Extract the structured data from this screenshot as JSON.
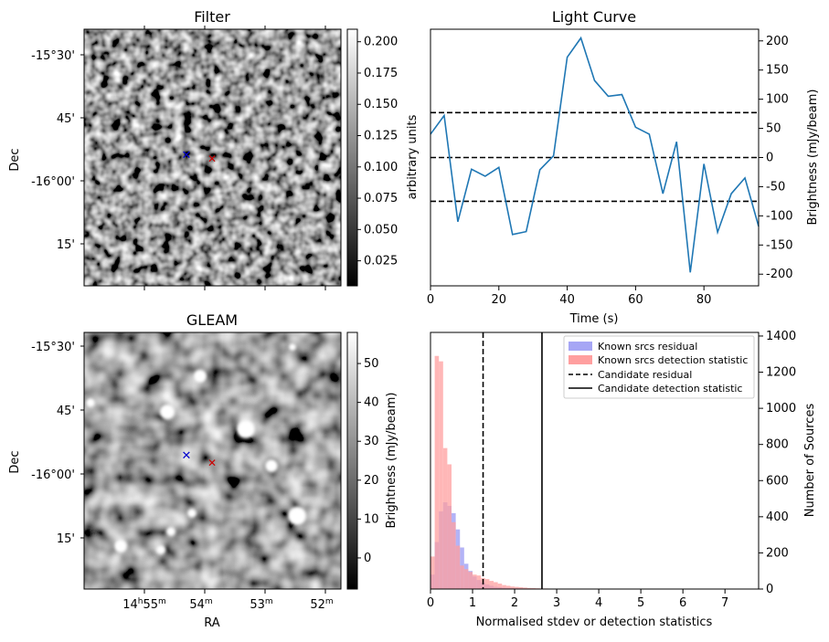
{
  "colors": {
    "line": "#1f77b4",
    "known_residual": "#a6a6f5",
    "known_detection": "#ff9f9f",
    "marker_blue": "#0000cc",
    "marker_red": "#cc0000"
  },
  "panels": {
    "filter": {
      "title": "Filter",
      "ylabel": "Dec",
      "dec_ticks": [
        "-15°30'",
        "45'",
        "-16°00'",
        "15'"
      ],
      "colorbar": {
        "label": "arbitrary units",
        "ticks": [
          "0.200",
          "0.175",
          "0.150",
          "0.125",
          "0.100",
          "0.075",
          "0.050",
          "0.025"
        ],
        "range": [
          0.005,
          0.21
        ]
      }
    },
    "gleam": {
      "title": "GLEAM",
      "ylabel": "Dec",
      "xlabel": "RA",
      "dec_ticks": [
        "-15°30'",
        "45'",
        "-16°00'",
        "15'"
      ],
      "ra_ticks": [
        {
          "main": "14",
          "sup1": "h",
          "mid": "55",
          "sup2": "m"
        },
        {
          "main": "54",
          "sup1": "",
          "mid": "",
          "sup2": "m"
        },
        {
          "main": "53",
          "sup1": "",
          "mid": "",
          "sup2": "m"
        },
        {
          "main": "52",
          "sup1": "",
          "mid": "",
          "sup2": "m"
        }
      ],
      "colorbar": {
        "label": "Brightness (mJy/beam)",
        "ticks": [
          "50",
          "40",
          "30",
          "20",
          "10",
          "0"
        ],
        "range": [
          -8,
          58
        ]
      }
    }
  },
  "chart_data": [
    {
      "type": "line",
      "title": "Light Curve",
      "xlabel": "Time (s)",
      "ylabel": "Brightness (mJy/beam)",
      "xlim": [
        0,
        96
      ],
      "ylim": [
        -220,
        220
      ],
      "xticks": [
        0,
        20,
        40,
        60,
        80
      ],
      "yticks": [
        -200,
        -150,
        -100,
        -50,
        0,
        50,
        100,
        150,
        200
      ],
      "x": [
        0,
        4,
        8,
        12,
        16,
        20,
        24,
        28,
        32,
        36,
        40,
        44,
        48,
        52,
        56,
        60,
        64,
        68,
        72,
        76,
        80,
        84,
        88,
        92,
        96
      ],
      "y": [
        40,
        72,
        -110,
        -20,
        -32,
        -17,
        -132,
        -127,
        -21,
        3,
        172,
        205,
        132,
        105,
        108,
        52,
        40,
        -62,
        27,
        -197,
        -11,
        -128,
        -62,
        -35,
        -118
      ],
      "hlines": [
        77,
        0,
        -75
      ]
    },
    {
      "type": "bar",
      "title": "",
      "xlabel": "Normalised stdev or detection statistics",
      "ylabel": "Number of Sources",
      "xlim": [
        0,
        7.8
      ],
      "ylim": [
        0,
        1420
      ],
      "xticks": [
        0,
        1,
        2,
        3,
        4,
        5,
        6,
        7
      ],
      "yticks": [
        0,
        200,
        400,
        600,
        800,
        1000,
        1200,
        1400
      ],
      "bin_width": 0.1,
      "series": [
        {
          "name": "Known srcs residual",
          "bin_start": 0,
          "values": [
            80,
            260,
            430,
            480,
            460,
            420,
            330,
            230,
            140,
            100,
            70,
            50,
            35,
            25,
            18,
            12,
            10,
            8,
            6,
            5,
            4,
            3,
            3,
            2,
            2,
            1,
            1,
            1
          ]
        },
        {
          "name": "Known srcs detection statistic",
          "bin_start": 0,
          "values": [
            180,
            1290,
            1260,
            780,
            690,
            370,
            240,
            130,
            110,
            95,
            80,
            75,
            60,
            55,
            45,
            38,
            30,
            22,
            18,
            14,
            12,
            10,
            8,
            6,
            5,
            4,
            3,
            3,
            2,
            2,
            2,
            1,
            1,
            1,
            1
          ]
        }
      ],
      "vlines": [
        {
          "name": "Candidate residual",
          "x": 1.25,
          "style": "dashed"
        },
        {
          "name": "Candidate detection statistic",
          "x": 2.65,
          "style": "solid"
        }
      ],
      "legend": "top-right"
    }
  ]
}
